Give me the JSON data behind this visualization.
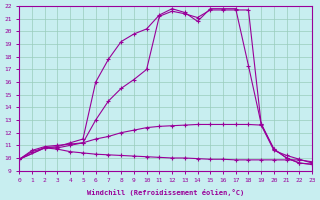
{
  "xlabel": "Windchill (Refroidissement éolien,°C)",
  "xlim": [
    0,
    23
  ],
  "ylim": [
    9,
    22
  ],
  "xticks": [
    0,
    1,
    2,
    3,
    4,
    5,
    6,
    7,
    8,
    9,
    10,
    11,
    12,
    13,
    14,
    15,
    16,
    17,
    18,
    19,
    20,
    21,
    22,
    23
  ],
  "yticks": [
    9,
    10,
    11,
    12,
    13,
    14,
    15,
    16,
    17,
    18,
    19,
    20,
    21,
    22
  ],
  "bg_color": "#c8eef0",
  "line_color": "#990099",
  "grid_color": "#99ccbb",
  "curves": [
    {
      "x": [
        0,
        1,
        2,
        3,
        4,
        5,
        6,
        7,
        8,
        9,
        10,
        11,
        12,
        13,
        14,
        15,
        16,
        17,
        18,
        19,
        20,
        21,
        22,
        23
      ],
      "y": [
        9.9,
        10.5,
        10.8,
        10.7,
        10.5,
        10.4,
        10.3,
        10.25,
        10.2,
        10.15,
        10.1,
        10.05,
        10.0,
        10.0,
        9.95,
        9.9,
        9.9,
        9.85,
        9.85,
        9.85,
        9.85,
        9.85,
        9.85,
        9.7
      ]
    },
    {
      "x": [
        0,
        1,
        2,
        3,
        4,
        5,
        6,
        7,
        8,
        9,
        10,
        11,
        12,
        13,
        14,
        15,
        16,
        17,
        18,
        19,
        20,
        21,
        22,
        23
      ],
      "y": [
        9.9,
        10.6,
        10.9,
        11.0,
        11.1,
        11.2,
        11.5,
        11.7,
        12.0,
        12.2,
        12.4,
        12.5,
        12.55,
        12.6,
        12.65,
        12.65,
        12.65,
        12.65,
        12.65,
        12.6,
        10.6,
        10.2,
        9.9,
        9.6
      ]
    },
    {
      "x": [
        0,
        2,
        3,
        4,
        5,
        6,
        7,
        8,
        9,
        10,
        11,
        12,
        13,
        14,
        15,
        16,
        17,
        18,
        19,
        20,
        21,
        22,
        23
      ],
      "y": [
        9.9,
        10.8,
        10.8,
        11.0,
        11.2,
        13.0,
        14.5,
        15.5,
        16.2,
        17.0,
        21.2,
        21.6,
        21.4,
        21.1,
        21.7,
        21.7,
        21.7,
        21.7,
        12.7,
        10.7,
        10.0,
        9.6,
        9.5
      ]
    },
    {
      "x": [
        0,
        2,
        3,
        4,
        5,
        6,
        7,
        8,
        9,
        10,
        11,
        12,
        13,
        14,
        15,
        16,
        17,
        18,
        19,
        20,
        21,
        22,
        23
      ],
      "y": [
        9.9,
        10.8,
        10.9,
        11.2,
        11.5,
        16.0,
        17.8,
        19.2,
        19.8,
        20.2,
        21.3,
        21.8,
        21.5,
        20.8,
        21.8,
        21.8,
        21.8,
        17.3,
        12.7,
        10.7,
        10.0,
        9.6,
        9.5
      ]
    }
  ]
}
